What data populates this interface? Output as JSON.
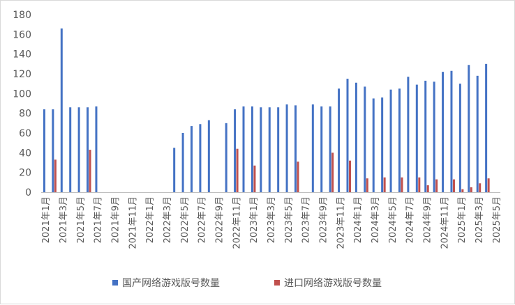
{
  "chart_data": {
    "type": "bar",
    "categories": [
      "2021年1月",
      "2021年2月",
      "2021年3月",
      "2021年4月",
      "2021年5月",
      "2021年6月",
      "2021年7月",
      "2021年8月",
      "2021年9月",
      "2021年10月",
      "2021年11月",
      "2021年12月",
      "2022年1月",
      "2022年2月",
      "2022年3月",
      "2022年4月",
      "2022年5月",
      "2022年6月",
      "2022年7月",
      "2022年8月",
      "2022年9月",
      "2022年10月",
      "2022年11月",
      "2022年12月",
      "2023年1月",
      "2023年2月",
      "2023年3月",
      "2023年4月",
      "2023年5月",
      "2023年6月",
      "2023年7月",
      "2023年8月",
      "2023年9月",
      "2023年10月",
      "2023年11月",
      "2023年12月",
      "2024年1月",
      "2024年2月",
      "2024年3月",
      "2024年4月",
      "2024年5月",
      "2024年6月",
      "2024年7月",
      "2024年8月",
      "2024年9月",
      "2024年10月",
      "2024年11月",
      "2024年12月",
      "2025年1月",
      "2025年2月",
      "2025年3月",
      "2025年4月",
      "2025年5月"
    ],
    "visible_tick_labels": [
      "2021年1月",
      "2021年3月",
      "2021年5月",
      "2021年7月",
      "2021年9月",
      "2021年11月",
      "2022年1月",
      "2022年3月",
      "2022年5月",
      "2022年7月",
      "2022年9月",
      "2022年11月",
      "2023年1月",
      "2023年3月",
      "2023年5月",
      "2023年7月",
      "2023年9月",
      "2023年11月",
      "2024年1月",
      "2024年3月",
      "2024年5月",
      "2024年7月",
      "2024年9月",
      "2024年11月",
      "2025年1月",
      "2025年3月",
      "2025年5月"
    ],
    "series": [
      {
        "name": "国产网络游戏版号数量",
        "color": "#4472c4",
        "values": [
          84,
          84,
          166,
          86,
          86,
          86,
          87,
          0,
          0,
          0,
          0,
          0,
          0,
          0,
          0,
          45,
          60,
          67,
          69,
          73,
          0,
          70,
          84,
          87,
          87,
          86,
          86,
          86,
          89,
          88,
          0,
          89,
          87,
          87,
          105,
          115,
          111,
          107,
          95,
          96,
          104,
          105,
          117,
          109,
          113,
          112,
          122,
          123,
          110,
          129,
          118,
          130,
          0
        ]
      },
      {
        "name": "进口网络游戏版号数量",
        "color": "#c0504d",
        "values": [
          0,
          33,
          0,
          0,
          0,
          43,
          0,
          0,
          0,
          0,
          0,
          0,
          0,
          0,
          0,
          0,
          0,
          0,
          0,
          0,
          0,
          0,
          44,
          0,
          27,
          0,
          0,
          0,
          0,
          31,
          0,
          0,
          0,
          40,
          0,
          32,
          0,
          14,
          0,
          15,
          0,
          15,
          0,
          15,
          7,
          13,
          0,
          13,
          3,
          5,
          9,
          14,
          0
        ]
      }
    ],
    "title": "",
    "xlabel": "",
    "ylabel": "",
    "ylim": [
      0,
      180
    ],
    "yticks": [
      "0",
      "20",
      "40",
      "60",
      "80",
      "100",
      "120",
      "140",
      "160",
      "180"
    ],
    "grid": false,
    "legend_position": "bottom"
  }
}
